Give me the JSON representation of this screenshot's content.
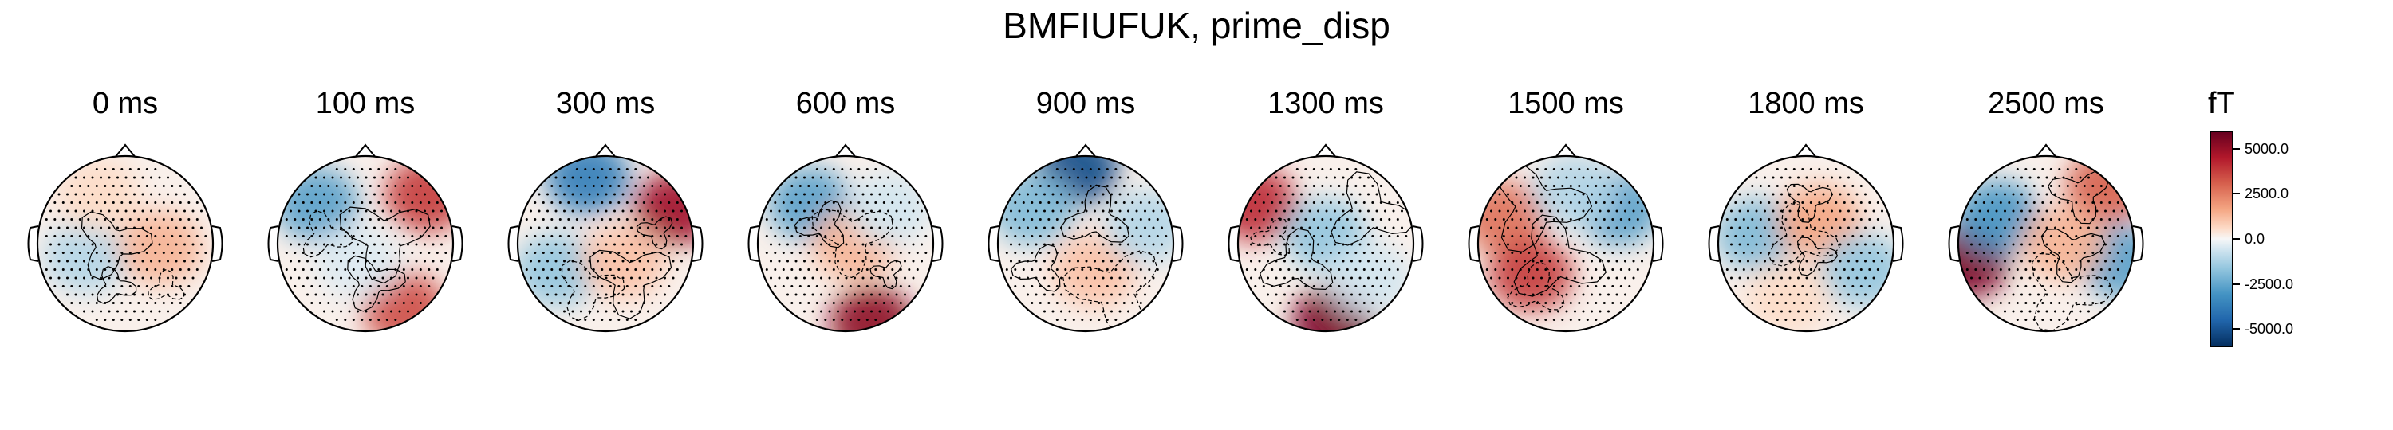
{
  "figure": {
    "title": "BMFIUFUK, prime_disp"
  },
  "chart_data": {
    "type": "heatmap",
    "title": "BMFIUFUK, prime_disp",
    "panels": [
      {
        "label": "0 ms",
        "blobs": [
          {
            "cx": -0.45,
            "cy": 0.15,
            "v": -0.3
          },
          {
            "cx": 0.4,
            "cy": 0.05,
            "v": 0.35
          },
          {
            "cx": -0.3,
            "cy": -0.55,
            "v": 0.2
          }
        ]
      },
      {
        "label": "100 ms",
        "blobs": [
          {
            "cx": -0.55,
            "cy": -0.45,
            "v": -0.55
          },
          {
            "cx": 0.7,
            "cy": -0.55,
            "v": 0.7
          },
          {
            "cx": 0.45,
            "cy": 0.75,
            "v": 0.65
          },
          {
            "cx": -0.1,
            "cy": 0.2,
            "v": -0.15
          }
        ]
      },
      {
        "label": "300 ms",
        "blobs": [
          {
            "cx": -0.2,
            "cy": -0.75,
            "v": -0.7
          },
          {
            "cx": 0.8,
            "cy": -0.4,
            "v": 0.85
          },
          {
            "cx": -0.55,
            "cy": 0.3,
            "v": -0.4
          },
          {
            "cx": 0.2,
            "cy": 0.2,
            "v": 0.3
          }
        ]
      },
      {
        "label": "600 ms",
        "blobs": [
          {
            "cx": -0.4,
            "cy": -0.45,
            "v": -0.55
          },
          {
            "cx": 0.1,
            "cy": 0.0,
            "v": 0.35
          },
          {
            "cx": 0.3,
            "cy": 0.9,
            "v": 0.9
          },
          {
            "cx": 0.5,
            "cy": -0.4,
            "v": -0.2
          }
        ]
      },
      {
        "label": "900 ms",
        "blobs": [
          {
            "cx": -0.1,
            "cy": -0.85,
            "v": -0.9
          },
          {
            "cx": -0.6,
            "cy": -0.4,
            "v": -0.45
          },
          {
            "cx": 0.1,
            "cy": 0.3,
            "v": 0.3
          },
          {
            "cx": 0.7,
            "cy": -0.2,
            "v": -0.3
          }
        ]
      },
      {
        "label": "1300 ms",
        "blobs": [
          {
            "cx": -0.8,
            "cy": -0.45,
            "v": 0.75
          },
          {
            "cx": 0.1,
            "cy": 0.9,
            "v": 0.95
          },
          {
            "cx": 0.0,
            "cy": -0.1,
            "v": -0.4
          },
          {
            "cx": 0.5,
            "cy": 0.4,
            "v": -0.2
          }
        ]
      },
      {
        "label": "1500 ms",
        "blobs": [
          {
            "cx": -0.7,
            "cy": -0.3,
            "v": 0.55
          },
          {
            "cx": -0.4,
            "cy": 0.35,
            "v": 0.7
          },
          {
            "cx": 0.6,
            "cy": -0.4,
            "v": -0.55
          },
          {
            "cx": 0.1,
            "cy": -0.6,
            "v": -0.3
          }
        ]
      },
      {
        "label": "1800 ms",
        "blobs": [
          {
            "cx": -0.55,
            "cy": -0.1,
            "v": -0.45
          },
          {
            "cx": 0.15,
            "cy": -0.25,
            "v": 0.4
          },
          {
            "cx": 0.65,
            "cy": 0.3,
            "v": -0.4
          },
          {
            "cx": -0.2,
            "cy": 0.6,
            "v": 0.2
          }
        ]
      },
      {
        "label": "2500 ms",
        "blobs": [
          {
            "cx": -0.9,
            "cy": 0.2,
            "v": 0.95
          },
          {
            "cx": -0.55,
            "cy": -0.3,
            "v": -0.6
          },
          {
            "cx": 0.7,
            "cy": -0.65,
            "v": 0.6
          },
          {
            "cx": 0.85,
            "cy": 0.2,
            "v": -0.55
          },
          {
            "cx": 0.2,
            "cy": 0.0,
            "v": 0.35
          }
        ]
      }
    ],
    "colorbar": {
      "unit": "fT",
      "range": [
        -6000,
        6000
      ],
      "ticks": [
        {
          "value": 5000,
          "label": "5000.0"
        },
        {
          "value": 2500,
          "label": "2500.0"
        },
        {
          "value": 0,
          "label": "0.0"
        },
        {
          "value": -2500,
          "label": "-2500.0"
        },
        {
          "value": -5000,
          "label": "-5000.0"
        }
      ],
      "colormap": [
        "#053061",
        "#2166ac",
        "#4393c3",
        "#92c5de",
        "#d1e5f0",
        "#f7f7f7",
        "#fddbc7",
        "#f4a582",
        "#d6604d",
        "#b2182b",
        "#67001f"
      ]
    }
  }
}
